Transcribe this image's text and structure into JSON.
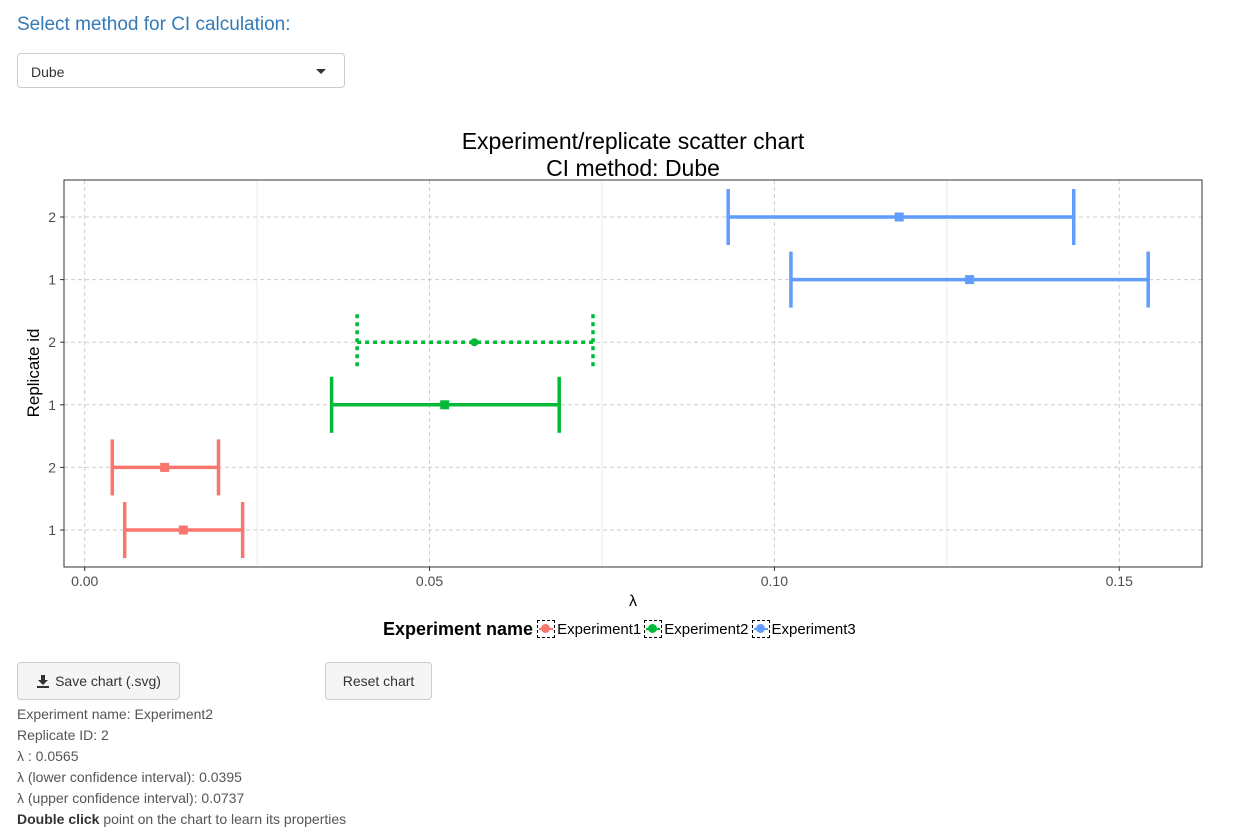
{
  "controls": {
    "method_label": "Select method for CI calculation:",
    "method_selected": "Dube"
  },
  "buttons": {
    "save_label": "Save chart (.svg)",
    "reset_label": "Reset chart"
  },
  "info": {
    "experiment_name": "Experiment name: Experiment2",
    "replicate_id": "Replicate ID: 2",
    "lambda": "λ : 0.0565",
    "lambda_lower": "λ (lower confidence interval): 0.0395",
    "lambda_upper": "λ (upper confidence interval): 0.0737",
    "hint_bold": "Double click",
    "hint_rest": " point on the chart to learn its properties"
  },
  "colors": {
    "Experiment1": "#f8766d",
    "Experiment2": "#00ba38",
    "Experiment3": "#619cff"
  },
  "chart_data": {
    "type": "scatter",
    "title": "Experiment/replicate scatter chart",
    "subtitle": "CI method: Dube",
    "xlabel": "λ",
    "ylabel": "Replicate id",
    "xlim": [
      -0.003,
      0.162
    ],
    "x_ticks": [
      0.0,
      0.05,
      0.1,
      0.15
    ],
    "x_tick_labels": [
      "0.00",
      "0.05",
      "0.10",
      "0.15"
    ],
    "y_categories": [
      "1",
      "2",
      "1",
      "2",
      "1",
      "2"
    ],
    "grid": true,
    "legend_title": "Experiment name",
    "legend_position": "bottom",
    "series": [
      {
        "name": "Experiment1",
        "points": [
          {
            "replicate": "1",
            "lambda": 0.0143,
            "lower": 0.0058,
            "upper": 0.0229
          },
          {
            "replicate": "2",
            "lambda": 0.0116,
            "lower": 0.004,
            "upper": 0.0194
          }
        ]
      },
      {
        "name": "Experiment2",
        "points": [
          {
            "replicate": "1",
            "lambda": 0.0522,
            "lower": 0.0358,
            "upper": 0.0688
          },
          {
            "replicate": "2",
            "lambda": 0.0565,
            "lower": 0.0395,
            "upper": 0.0737,
            "selected": true
          }
        ]
      },
      {
        "name": "Experiment3",
        "points": [
          {
            "replicate": "1",
            "lambda": 0.1283,
            "lower": 0.1024,
            "upper": 0.1542
          },
          {
            "replicate": "2",
            "lambda": 0.1181,
            "lower": 0.0933,
            "upper": 0.1434
          }
        ]
      }
    ]
  }
}
